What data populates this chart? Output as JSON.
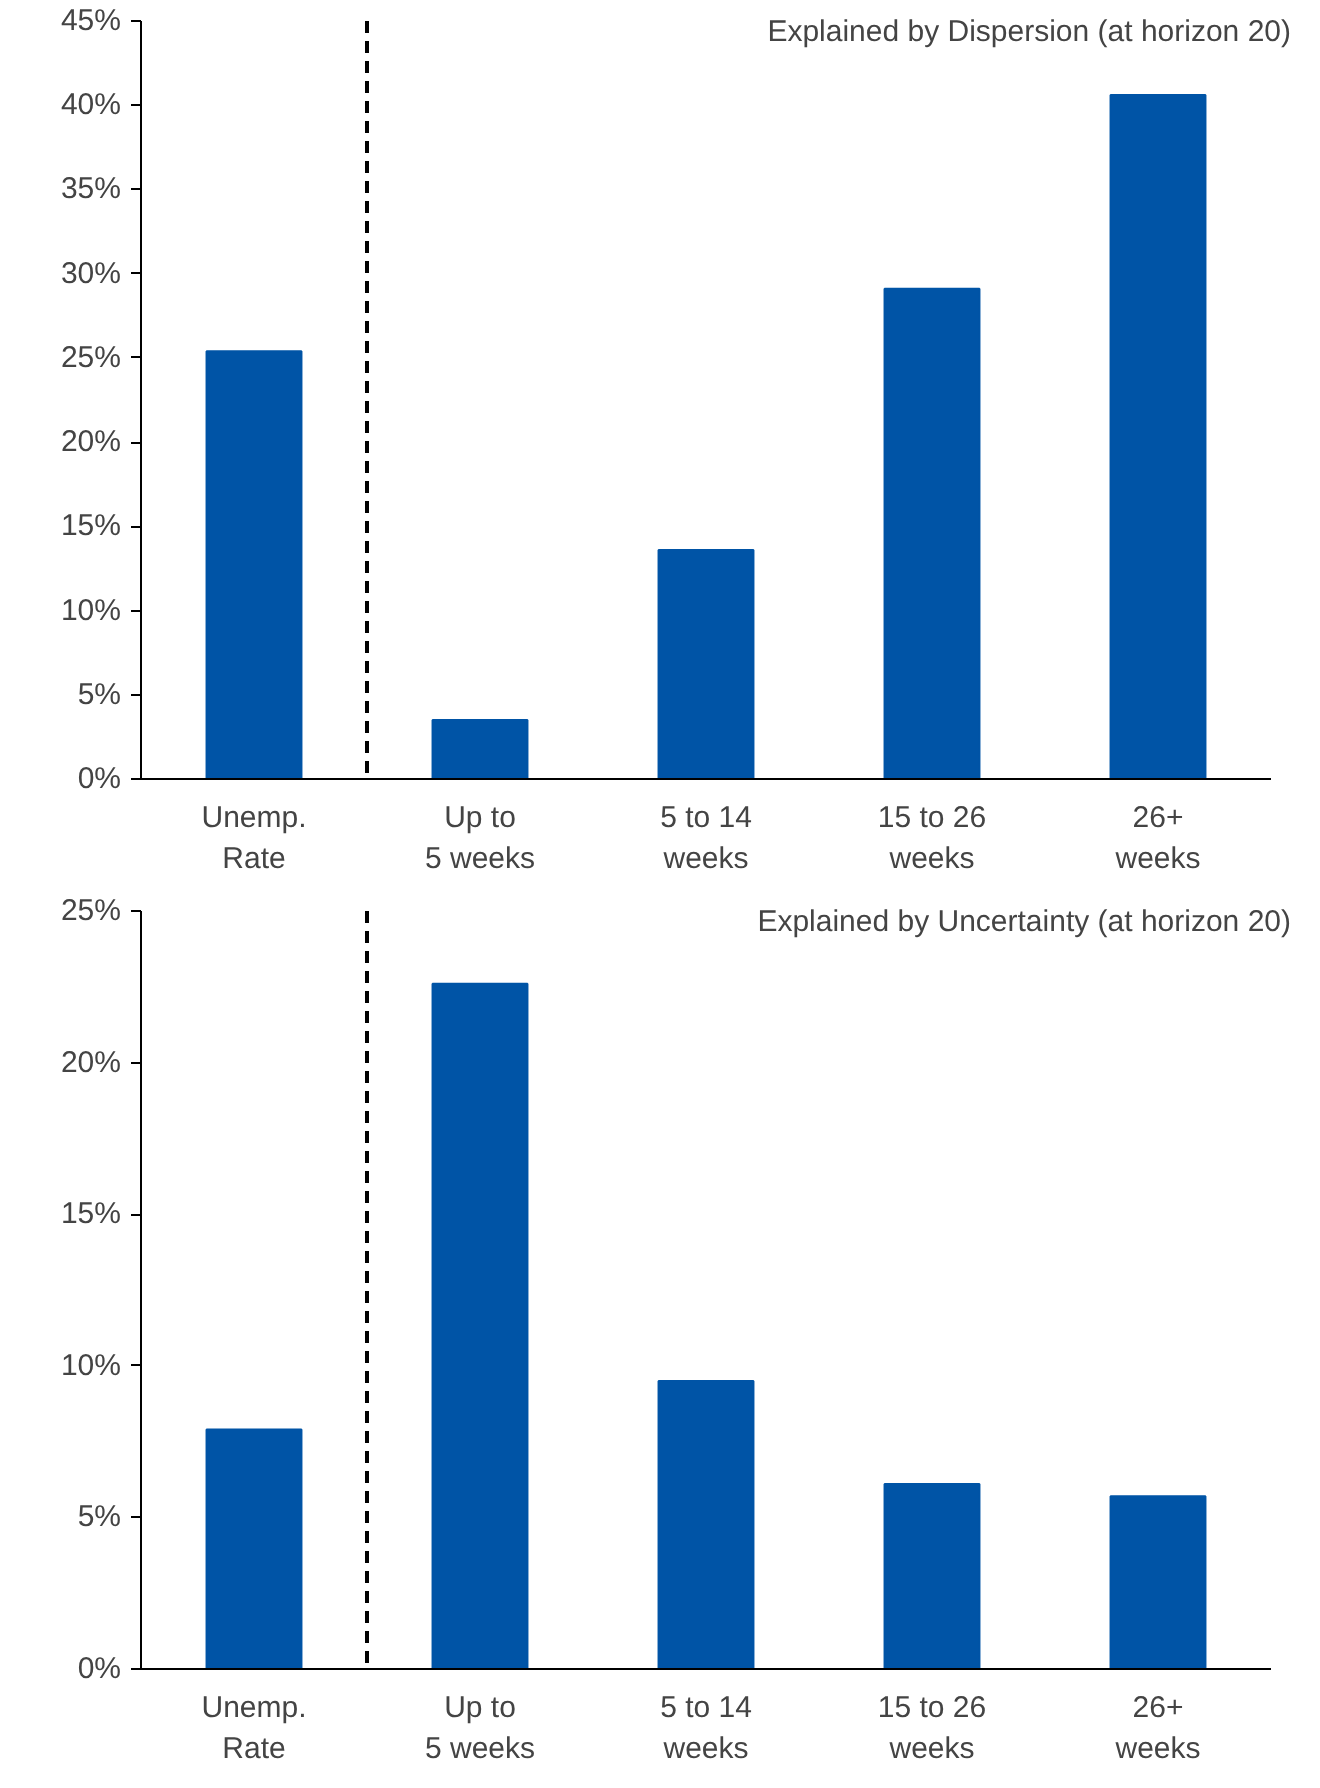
{
  "chart_data": [
    {
      "type": "bar",
      "title": "Explained by Dispersion (at horizon 20)",
      "categories": [
        "Unemp.\nRate",
        "Up to\n5 weeks",
        "5 to 14\nweeks",
        "15 to 26\nweeks",
        "26+\nweeks"
      ],
      "values": [
        25.4,
        3.5,
        13.6,
        29.1,
        40.6
      ],
      "color": "#0054a6",
      "ylim": [
        0,
        45
      ],
      "yticks": [
        {
          "value": 0,
          "label": "0%"
        },
        {
          "value": 5,
          "label": "5%"
        },
        {
          "value": 10,
          "label": "10%"
        },
        {
          "value": 15,
          "label": "15%"
        },
        {
          "value": 20,
          "label": "20%"
        },
        {
          "value": 25,
          "label": "25%"
        },
        {
          "value": 30,
          "label": "30%"
        },
        {
          "value": 35,
          "label": "35%"
        },
        {
          "value": 40,
          "label": "40%"
        },
        {
          "value": 45,
          "label": "45%"
        }
      ],
      "grid": false
    },
    {
      "type": "bar",
      "title": "Explained by Uncertainty (at horizon 20)",
      "categories": [
        "Unemp.\nRate",
        "Up to\n5 weeks",
        "5 to 14\nweeks",
        "15 to 26\nweeks",
        "26+\nweeks"
      ],
      "values": [
        7.9,
        22.6,
        9.5,
        6.1,
        5.7
      ],
      "color": "#0054a6",
      "ylim": [
        0,
        25
      ],
      "yticks": [
        {
          "value": 0,
          "label": "0%"
        },
        {
          "value": 5,
          "label": "5%"
        },
        {
          "value": 10,
          "label": "10%"
        },
        {
          "value": 15,
          "label": "15%"
        },
        {
          "value": 20,
          "label": "20%"
        },
        {
          "value": 25,
          "label": "25%"
        }
      ],
      "grid": false
    }
  ]
}
